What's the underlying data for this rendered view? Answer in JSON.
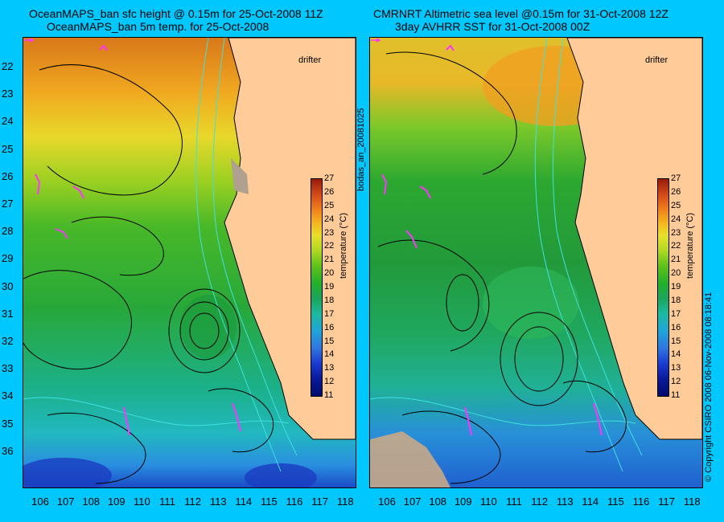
{
  "left_panel": {
    "title_line1": "OceanMAPS_ban sfc height @ 0.15m for 25-Oct-2008 11Z",
    "title_line2": "OceanMAPS_ban 5m temp. for 25-Oct-2008",
    "drifter_label": "drifter",
    "colorbar_label": "temperature (°C)"
  },
  "right_panel": {
    "title_line1": "CMRNRT Altimetric sea level  @0.15m  for 31-Oct-2008 12Z",
    "title_line2": "3day AVHRR SST for 31-Oct-2008 00Z",
    "drifter_label": "drifter",
    "colorbar_label": "temperature (°C)"
  },
  "middle_vertical_text": "bodas_an_20081025",
  "right_vertical_text": "© Copyright CSIRO 2008    06-Nov-2008 08:18:41",
  "colorbar_ticks": [
    "27",
    "26",
    "25",
    "24",
    "23",
    "22",
    "21",
    "20",
    "19",
    "18",
    "17",
    "16",
    "15",
    "14",
    "13",
    "12",
    "11"
  ],
  "latitude_labels": [
    "22",
    "23",
    "24",
    "25",
    "26",
    "27",
    "28",
    "29",
    "30",
    "31",
    "32",
    "33",
    "34",
    "35",
    "36"
  ],
  "longitude_labels": [
    "106",
    "107",
    "108",
    "109",
    "110",
    "111",
    "112",
    "113",
    "114",
    "115",
    "116",
    "117",
    "118"
  ],
  "colors": {
    "background": "#00c8ff",
    "land": "#ffcc99",
    "contour": "#000000",
    "bathymetry": "#40e0e0",
    "drifter_track": "#ff33ff"
  }
}
